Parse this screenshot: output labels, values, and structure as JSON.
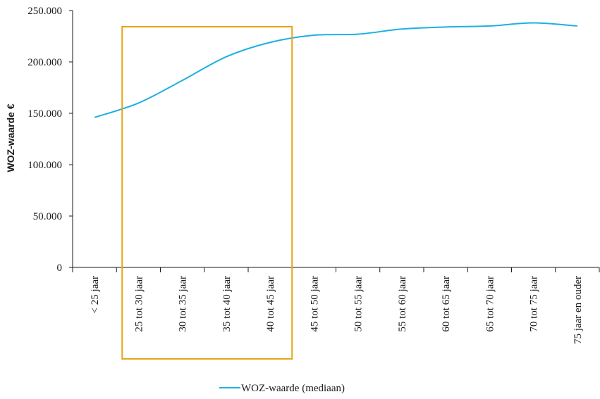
{
  "chart_data": {
    "type": "line",
    "categories": [
      "< 25 jaar",
      "25 tot 30 jaar",
      "30 tot 35 jaar",
      "35 tot 40 jaar",
      "40 tot 45 jaar",
      "45 tot 50 jaar",
      "50 tot 55 jaar",
      "55 tot 60 jaar",
      "60 tot 65 jaar",
      "65 tot 70 jaar",
      "70 tot 75 jaar",
      "75 jaar en ouder"
    ],
    "series": [
      {
        "name": "WOZ-waarde (mediaan)",
        "values": [
          146000,
          160000,
          182000,
          205000,
          219000,
          226000,
          227000,
          232000,
          234000,
          235000,
          238000,
          235000
        ],
        "color": "#1cb0e4"
      }
    ],
    "ylabel": "WOZ-waarde €",
    "xlabel": "",
    "ylim": [
      0,
      250000
    ],
    "yticks": [
      "0",
      "50.000",
      "100.000",
      "150.000",
      "200.000",
      "250.000"
    ],
    "grid": false,
    "legend_position": "bottom",
    "highlight": {
      "from_category": "25 tot 30 jaar",
      "to_category": "40 tot 45 jaar",
      "color": "#e8a317"
    }
  }
}
